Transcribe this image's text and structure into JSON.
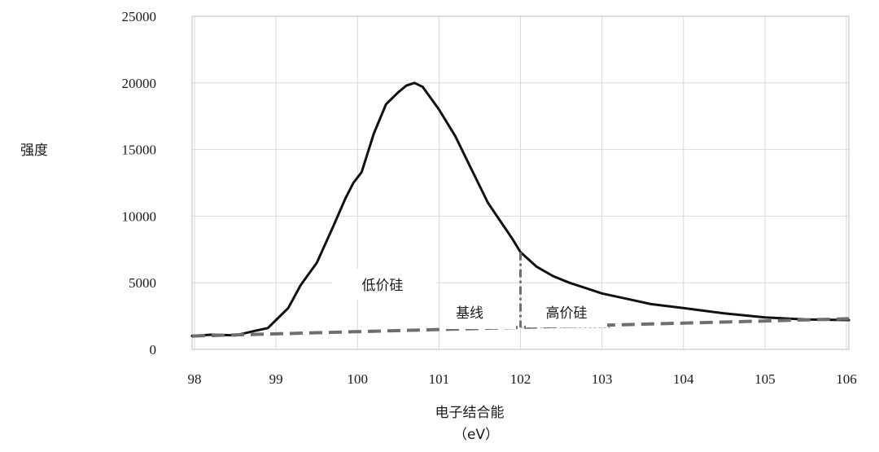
{
  "chart_data": {
    "type": "line",
    "title": "",
    "ylabel": "强度",
    "xlabel": "电子结合能",
    "xunit": "（eV）",
    "xlim": [
      97.97,
      106.03
    ],
    "ylim": [
      0,
      25000
    ],
    "xticks": [
      98,
      99,
      100,
      101,
      102,
      103,
      104,
      105,
      106
    ],
    "yticks": [
      0,
      5000,
      10000,
      15000,
      20000,
      25000
    ],
    "grid": true,
    "series": [
      {
        "style": "solid",
        "x": [
          97.97,
          98.2,
          98.5,
          98.75,
          98.9,
          99.0,
          99.15,
          99.3,
          99.5,
          99.7,
          99.85,
          99.95,
          100.05,
          100.2,
          100.35,
          100.5,
          100.6,
          100.7,
          100.8,
          101.0,
          101.2,
          101.4,
          101.6,
          101.8,
          101.9,
          102.0,
          102.2,
          102.4,
          102.6,
          102.8,
          103.0,
          103.3,
          103.6,
          104.0,
          104.5,
          105.0,
          105.5,
          106.03
        ],
        "y": [
          1000,
          1100,
          1050,
          1400,
          1600,
          2200,
          3100,
          4800,
          6500,
          9200,
          11300,
          12500,
          13300,
          16200,
          18400,
          19300,
          19800,
          20000,
          19700,
          18000,
          16000,
          13500,
          11000,
          9200,
          8300,
          7300,
          6200,
          5500,
          5000,
          4600,
          4200,
          3800,
          3400,
          3100,
          2700,
          2400,
          2250,
          2200
        ]
      },
      {
        "name": "基线",
        "style": "dashed",
        "x": [
          97.97,
          106.03
        ],
        "y": [
          1000,
          2300
        ]
      }
    ],
    "divider_x": 102.0,
    "annotations": {
      "low": "低价硅",
      "baseline": "基线",
      "high": "高价硅"
    }
  }
}
